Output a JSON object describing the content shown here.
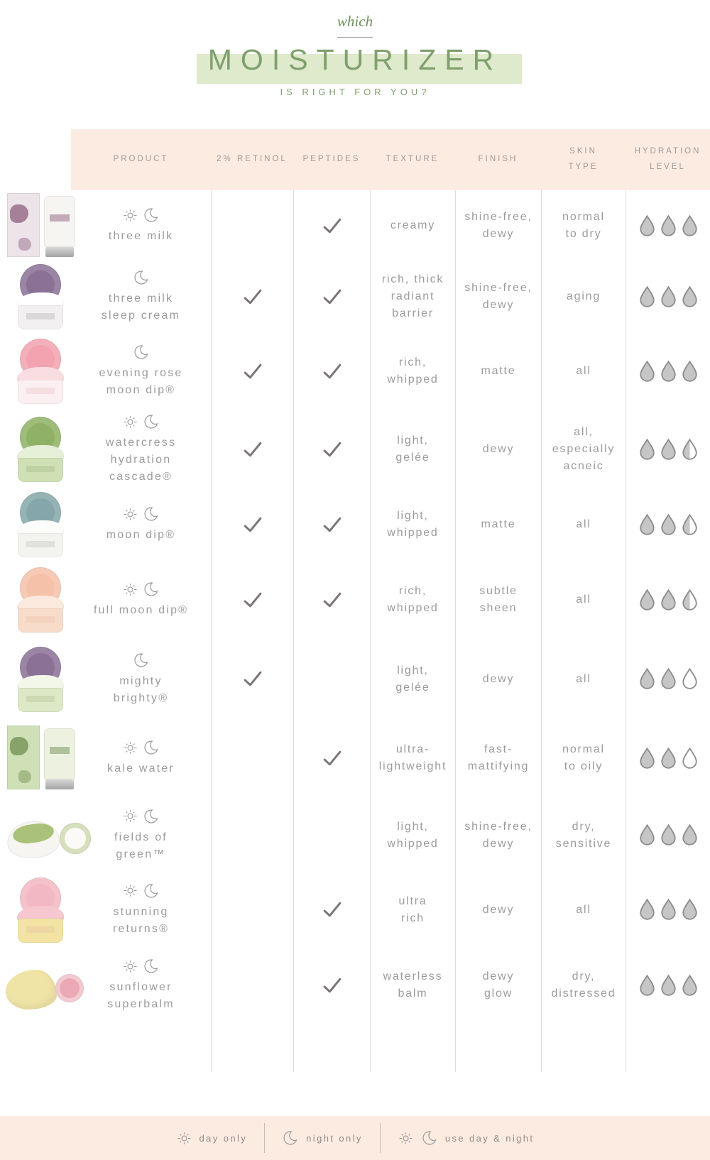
{
  "header": {
    "eyebrow": "which",
    "title": "MOISTURIZER",
    "subtitle": "IS RIGHT FOR YOU?"
  },
  "chart_data": {
    "type": "table",
    "title": "which MOISTURIZER is right for you?",
    "columns": [
      "PRODUCT",
      "2% RETINOL",
      "PEPTIDES",
      "TEXTURE",
      "FINISH",
      "SKIN\nTYPE",
      "HYDRATION\nLEVEL"
    ],
    "hydration_scale_max": 3,
    "rows": [
      {
        "product": "three milk",
        "display": "three milk",
        "usage": "day-night",
        "retinol": false,
        "peptides": true,
        "texture": "creamy",
        "finish": "shine-free,\ndewy",
        "skin_type": "normal\nto dry",
        "hydration_level": 3,
        "drops": [
          "full",
          "full",
          "full"
        ],
        "thumb": {
          "type": "box-tube",
          "box": "#ece4e9",
          "accent": "#8f5f7d",
          "tube": "#f7f5f2"
        }
      },
      {
        "product": "three milk sleep cream",
        "display": "three milk\nsleep cream",
        "usage": "night",
        "retinol": true,
        "peptides": true,
        "texture": "rich, thick\nradiant\nbarrier",
        "finish": "shine-free,\ndewy",
        "skin_type": "aging",
        "hydration_level": 3,
        "drops": [
          "full",
          "full",
          "full"
        ],
        "thumb": {
          "type": "jar",
          "lid": "#8b7195",
          "cream": "#ffffff",
          "jar": "#f2f0f1",
          "accent": "#6d6d6d"
        }
      },
      {
        "product": "evening rose moon dip®",
        "display": "evening rose\nmoon dip®",
        "usage": "night",
        "retinol": true,
        "peptides": true,
        "texture": "rich,\nwhipped",
        "finish": "matte",
        "skin_type": "all",
        "hydration_level": 3,
        "drops": [
          "full",
          "full",
          "full"
        ],
        "thumb": {
          "type": "jar",
          "lid": "#f2a3af",
          "cream": "#f8dde3",
          "jar": "#fbeff2",
          "accent": "#e08a9a"
        }
      },
      {
        "product": "watercress hydration cascade®",
        "display": "watercress\nhydration\ncascade®",
        "usage": "day-night",
        "retinol": true,
        "peptides": true,
        "texture": "light,\ngelée",
        "finish": "dewy",
        "skin_type": "all,\nespecially\nacneic",
        "hydration_level": 2.5,
        "drops": [
          "full",
          "full",
          "half"
        ],
        "thumb": {
          "type": "jar",
          "lid": "#8fb165",
          "cream": "#e6efd8",
          "jar": "#cfe0b5",
          "accent": "#6f8f4f"
        }
      },
      {
        "product": "moon dip®",
        "display": "moon dip®",
        "usage": "day-night",
        "retinol": true,
        "peptides": true,
        "texture": "light,\nwhipped",
        "finish": "matte",
        "skin_type": "all",
        "hydration_level": 2.5,
        "drops": [
          "full",
          "full",
          "half"
        ],
        "thumb": {
          "type": "jar",
          "lid": "#85a7ab",
          "cream": "#fcfcfa",
          "jar": "#f3f3f0",
          "accent": "#8a8a8a"
        }
      },
      {
        "product": "full moon dip®",
        "display": "full moon dip®",
        "usage": "day-night",
        "retinol": true,
        "peptides": true,
        "texture": "rich,\nwhipped",
        "finish": "subtle\nsheen",
        "skin_type": "all",
        "hydration_level": 2.5,
        "drops": [
          "full",
          "full",
          "half"
        ],
        "thumb": {
          "type": "jar",
          "lid": "#f5c2a9",
          "cream": "#fbe9dd",
          "jar": "#f8dcca",
          "accent": "#e0a488"
        }
      },
      {
        "product": "mighty brighty®",
        "display": "mighty\nbrighty®",
        "usage": "night",
        "retinol": true,
        "peptides": false,
        "texture": "light,\ngelée",
        "finish": "dewy",
        "skin_type": "all",
        "hydration_level": 2,
        "drops": [
          "full",
          "full",
          "empty"
        ],
        "thumb": {
          "type": "jar",
          "lid": "#8b7195",
          "cream": "#f3f7ea",
          "jar": "#dde8c6",
          "accent": "#7d9a5d"
        }
      },
      {
        "product": "kale water",
        "display": "kale water",
        "usage": "day-night",
        "retinol": false,
        "peptides": true,
        "texture": "ultra-\nlightweight",
        "finish": "fast-\nmattifying",
        "skin_type": "normal\nto oily",
        "hydration_level": 2,
        "drops": [
          "full",
          "full",
          "empty"
        ],
        "thumb": {
          "type": "box-tube",
          "box": "#cfe0b6",
          "accent": "#6f8f4f",
          "tube": "#edf2e0"
        }
      },
      {
        "product": "fields of green™",
        "display": "fields of\ngreen™",
        "usage": "day-night",
        "retinol": false,
        "peptides": false,
        "texture": "light,\nwhipped",
        "finish": "shine-free,\ndewy",
        "skin_type": "dry,\nsensitive",
        "hydration_level": 3,
        "drops": [
          "full",
          "full",
          "full"
        ],
        "thumb": {
          "type": "tilted-jar",
          "goop": "#a9c178",
          "ring": "rgba(169,193,120,0.45)"
        }
      },
      {
        "product": "stunning returns®",
        "display": "stunning\nreturns®",
        "usage": "day-night",
        "retinol": false,
        "peptides": true,
        "texture": "ultra\nrich",
        "finish": "dewy",
        "skin_type": "all",
        "hydration_level": 3,
        "drops": [
          "full",
          "full",
          "full"
        ],
        "thumb": {
          "type": "jar",
          "lid": "#f3b9c3",
          "cream": "#f6c7cf",
          "jar": "#f2e3a2",
          "accent": "#d89aa8"
        }
      },
      {
        "product": "sunflower superbalm",
        "display": "sunflower\nsuperbalm",
        "usage": "day-night",
        "retinol": false,
        "peptides": true,
        "texture": "waterless\nbalm",
        "finish": "dewy\nglow",
        "skin_type": "dry,\ndistressed",
        "hydration_level": 3,
        "drops": [
          "full",
          "full",
          "full"
        ],
        "thumb": {
          "type": "balm",
          "balm": "#efe3a6",
          "disc": "#eaa9b5"
        }
      }
    ]
  },
  "legend": {
    "items": [
      {
        "icon": "day",
        "label": "day only"
      },
      {
        "icon": "night",
        "label": "night only"
      },
      {
        "icon": "day-night",
        "label": "use day & night"
      }
    ]
  },
  "colors": {
    "band_peach": "#fcebe1",
    "title_green": "#7fa06c",
    "title_band_green": "#dfe9cc",
    "eyebrow_green": "#6d9158",
    "text_gray": "#9b9b9b",
    "check_gray": "#7b7674",
    "divider_gray": "#dcdcdc",
    "drop_fill": "#c6c6c6",
    "drop_stroke": "#8d8d8d"
  }
}
